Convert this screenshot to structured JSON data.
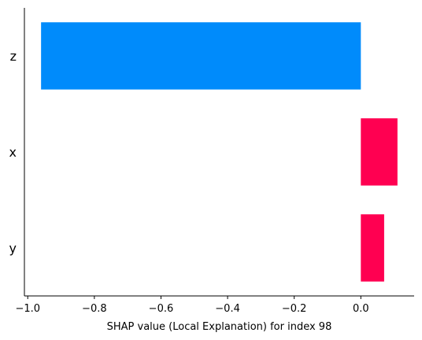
{
  "chart_data": {
    "type": "bar",
    "orientation": "horizontal",
    "categories": [
      "z",
      "x",
      "y"
    ],
    "values": [
      -0.96,
      0.11,
      0.07
    ],
    "xlabel": "SHAP value (Local Explanation) for index 98",
    "ylabel": "",
    "title": "",
    "xlim": [
      -1.01,
      0.16
    ],
    "xticks": [
      -1.0,
      -0.8,
      -0.6,
      -0.4,
      -0.2,
      0.0
    ],
    "xtick_labels": [
      "−1.0",
      "−0.8",
      "−0.6",
      "−0.4",
      "−0.2",
      "0.0"
    ],
    "grid": false,
    "colors": {
      "negative": "#008bfb",
      "positive": "#ff0051"
    }
  }
}
